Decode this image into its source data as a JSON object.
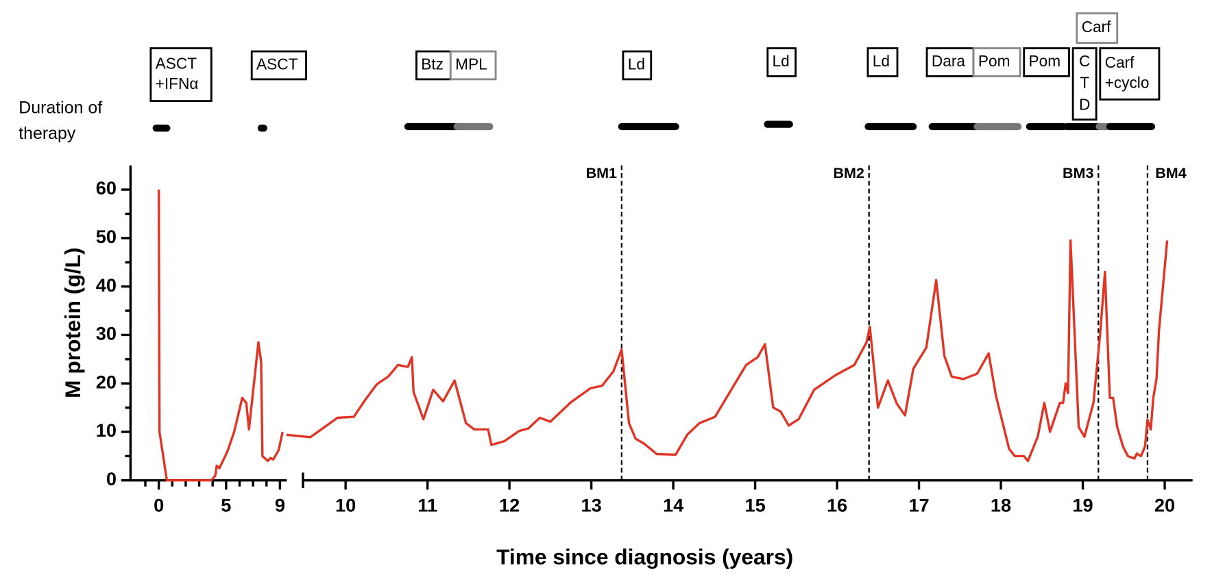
{
  "chart_data": {
    "type": "line",
    "ylabel": "M protein (g/L)",
    "xlabel": "Time since diagnosis (years)",
    "therapy_label": "Duration of therapy",
    "ylim": [
      0,
      65
    ],
    "yticks": [
      0,
      10,
      20,
      30,
      40,
      50,
      60
    ],
    "yminorticks": [
      5,
      15,
      25,
      35,
      45,
      55
    ],
    "x_segments": [
      {
        "xlim": [
          -2.1,
          9.5
        ],
        "xticks": [
          0,
          5,
          9
        ],
        "xminorticks": [
          -1,
          1,
          2,
          3,
          4,
          6,
          7,
          8
        ]
      },
      {
        "xlim": [
          9.48,
          20.34
        ],
        "xticks": [
          10,
          11,
          12,
          13,
          14,
          15,
          16,
          17,
          18,
          19,
          20
        ]
      }
    ],
    "series": [
      {
        "color": "#e03424",
        "x": [
          0,
          0.05,
          0.6,
          3.9,
          4.2,
          4.3,
          4.5,
          5.1,
          5.6,
          6.2,
          6.5,
          6.7,
          7.4,
          7.6,
          7.7,
          8.1,
          8.3,
          8.5,
          8.9,
          9.2
        ],
        "values": [
          60,
          10,
          0,
          0,
          1,
          3,
          2.5,
          6,
          10,
          17,
          16,
          10.5,
          28.5,
          24.5,
          5,
          4,
          4.6,
          4.3,
          6.2,
          10
        ]
      },
      {
        "color": "#e03424",
        "x": [
          9.48,
          9.57,
          9.9,
          10.1,
          10.24,
          10.38,
          10.52,
          10.64,
          10.76,
          10.81,
          10.83,
          10.95,
          11.07,
          11.19,
          11.33,
          11.47,
          11.57,
          11.74,
          11.78,
          11.94,
          12.12,
          12.23,
          12.37,
          12.5,
          12.75,
          12.99,
          13.13,
          13.27,
          13.37,
          13.46,
          13.54,
          13.65,
          13.8,
          14.03,
          14.17,
          14.32,
          14.51,
          14.89,
          15.03,
          15.12,
          15.22,
          15.31,
          15.41,
          15.53,
          15.72,
          15.98,
          16.21,
          16.36,
          16.4,
          16.5,
          16.62,
          16.73,
          16.83,
          16.93,
          17.09,
          17.21,
          17.31,
          17.4,
          17.54,
          17.71,
          17.85,
          17.94,
          18.1,
          18.17,
          18.28,
          18.33,
          18.45,
          18.53,
          18.6,
          18.72,
          18.76,
          18.79,
          18.82,
          18.85,
          18.95,
          19.02,
          19.13,
          19.21,
          19.27,
          19.33,
          19.37,
          19.42,
          19.49,
          19.55,
          19.63,
          19.66,
          19.71,
          19.76,
          19.79,
          19.83,
          19.86,
          19.9,
          19.93,
          20.03
        ],
        "values": [
          9.4,
          8.9,
          12.9,
          13.1,
          16.6,
          19.8,
          21.4,
          23.8,
          23.4,
          25.4,
          18.2,
          12.6,
          18.7,
          16.3,
          20.6,
          11.8,
          10.5,
          10.5,
          7.3,
          8.1,
          10.2,
          10.7,
          12.9,
          12.1,
          16.1,
          19,
          19.5,
          22.5,
          27,
          11.8,
          8.6,
          7.5,
          5.4,
          5.3,
          9.4,
          11.8,
          13.1,
          23.8,
          25.4,
          28.1,
          15,
          14.2,
          11.3,
          12.6,
          18.7,
          21.7,
          23.8,
          28.5,
          31.7,
          15,
          20.6,
          15.8,
          13.4,
          23,
          27.4,
          41.3,
          25.7,
          21.4,
          20.9,
          22,
          26.2,
          17.4,
          6.5,
          5,
          5,
          4,
          9,
          16,
          10,
          16,
          16,
          20,
          18,
          49.5,
          11,
          9,
          16,
          30,
          43,
          17,
          17,
          11,
          7,
          5,
          4.5,
          5.5,
          5,
          7,
          12.5,
          10.5,
          17,
          21,
          31,
          49.5
        ]
      }
    ],
    "reference_lines": [
      {
        "x": 13.37,
        "label": "BM1"
      },
      {
        "x": 16.39,
        "label": "BM2"
      },
      {
        "x": 19.19,
        "label": "BM3"
      },
      {
        "x": 19.79,
        "label": "BM4"
      }
    ],
    "therapies": [
      {
        "label": [
          "ASCT",
          "+IFNα"
        ],
        "start": -0.2,
        "end": 0.6,
        "color": "#000000"
      },
      {
        "label": [
          "ASCT"
        ],
        "start": 7.6,
        "end": 7.8,
        "color": "#000000"
      },
      {
        "label": [
          "Btz"
        ],
        "start": 10.76,
        "end": 11.36,
        "color": "#000000"
      },
      {
        "label": [
          "MPL"
        ],
        "start": 11.36,
        "end": 11.76,
        "color": "#777777"
      },
      {
        "label": [
          "Ld"
        ],
        "start": 13.37,
        "end": 14.03,
        "color": "#000000"
      },
      {
        "label": [
          "Ld"
        ],
        "start": 15.15,
        "end": 15.42,
        "color": "#000000"
      },
      {
        "label": [
          "Ld"
        ],
        "start": 16.38,
        "end": 16.93,
        "color": "#000000"
      },
      {
        "label": [
          "Dara"
        ],
        "start": 17.16,
        "end": 17.71,
        "color": "#000000"
      },
      {
        "label": [
          "Pom"
        ],
        "start": 17.71,
        "end": 18.21,
        "color": "#777777"
      },
      {
        "label": [
          "Pom"
        ],
        "start": 18.35,
        "end": 18.76,
        "color": "#000000"
      },
      {
        "label": [
          "C",
          "T",
          "D"
        ],
        "start": 18.8,
        "end": 19.2,
        "color": "#000000"
      },
      {
        "label": [
          "Carf"
        ],
        "start": 19.2,
        "end": 19.3,
        "color": "#777777"
      },
      {
        "label": [
          "Carf",
          "+cyclo"
        ],
        "start": 19.33,
        "end": 19.84,
        "color": "#000000"
      }
    ]
  }
}
